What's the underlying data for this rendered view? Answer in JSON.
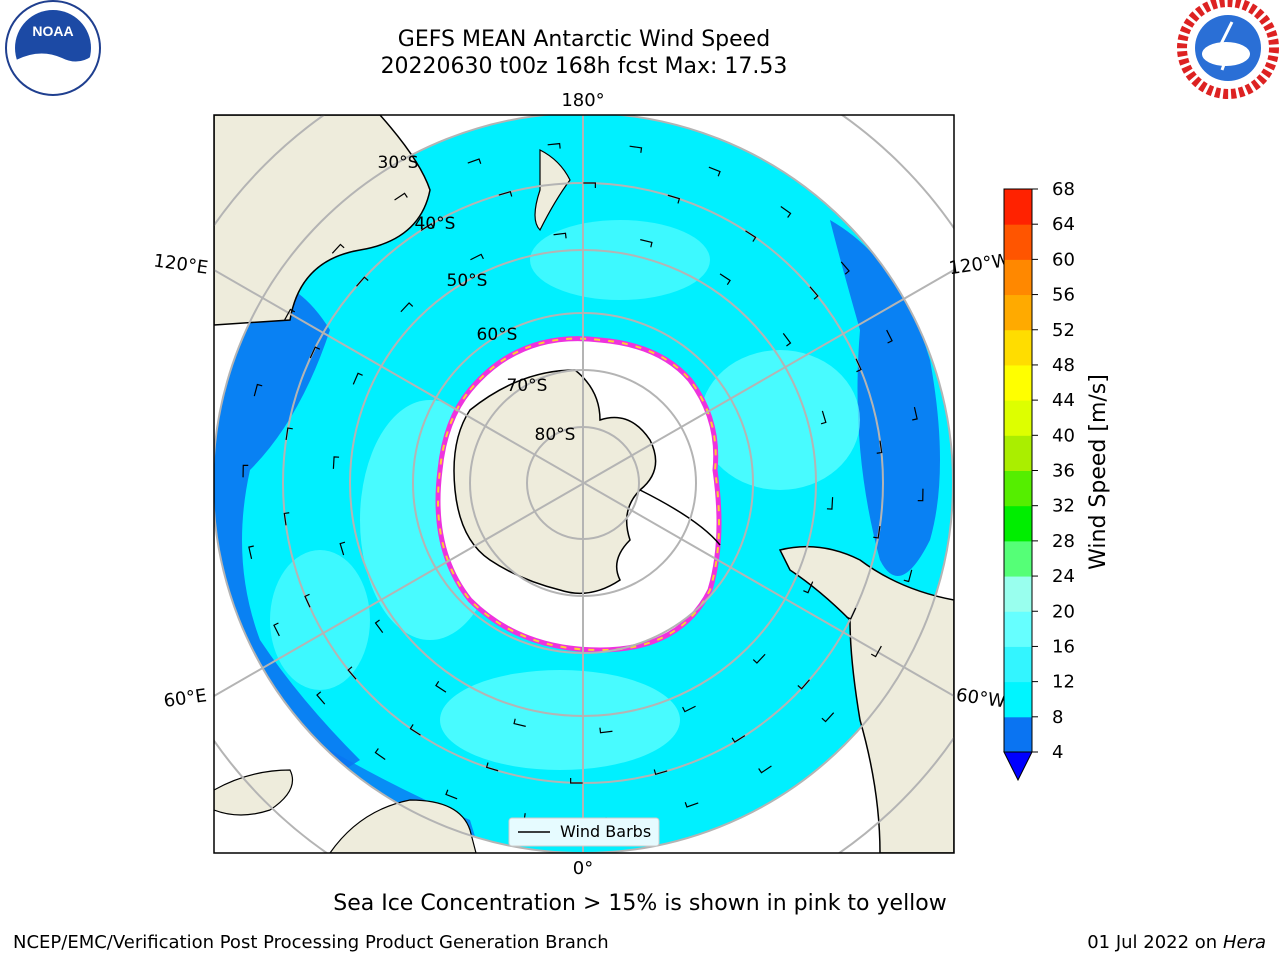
{
  "header": {
    "title_line1": "GEFS MEAN Antarctic Wind Speed",
    "title_line2": "20220630 t00z 168h fcst   Max: 17.53"
  },
  "logos": {
    "left": "noaa-logo",
    "right": "national-weather-service-logo"
  },
  "map": {
    "projection": "south-polar-stereographic",
    "longitude_labels": {
      "top": "180°",
      "bottom": "0°",
      "upper_left": "120°E",
      "upper_right": "120°W",
      "lower_left": "60°E",
      "lower_right": "60°W"
    },
    "latitude_labels": [
      "30°S",
      "40°S",
      "50°S",
      "60°S",
      "70°S",
      "80°S"
    ],
    "legend_label": "Wind Barbs",
    "colors": {
      "land": "#eeecdc",
      "ocean_low": "#0a74f2",
      "ocean_mid": "#00f0ff",
      "ocean_high": "#66ffff",
      "sea_ice": "#ffffff",
      "ice_edge": "#ee33dd",
      "grid": "#b4b4b4"
    }
  },
  "colorbar": {
    "label": "Wind Speed [m/s]",
    "ticks": [
      "4",
      "8",
      "12",
      "16",
      "20",
      "24",
      "28",
      "32",
      "36",
      "40",
      "44",
      "48",
      "52",
      "56",
      "60",
      "64",
      "68"
    ],
    "colors": [
      "#0a74f2",
      "#00f5ff",
      "#33f5ff",
      "#66ffff",
      "#99ffee",
      "#55ff77",
      "#00ee00",
      "#55ee00",
      "#aaee00",
      "#ddff00",
      "#ffff00",
      "#ffdd00",
      "#ffaa00",
      "#ff8800",
      "#ff5500",
      "#ff2200"
    ],
    "under_color": "#0000ff"
  },
  "notes": {
    "sea_ice": "Sea Ice Concentration > 15% is shown in pink to yellow"
  },
  "footer": {
    "left": "NCEP/EMC/Verification Post Processing Product Generation Branch",
    "right_date": "01 Jul 2022 on",
    "right_host": "Hera"
  }
}
